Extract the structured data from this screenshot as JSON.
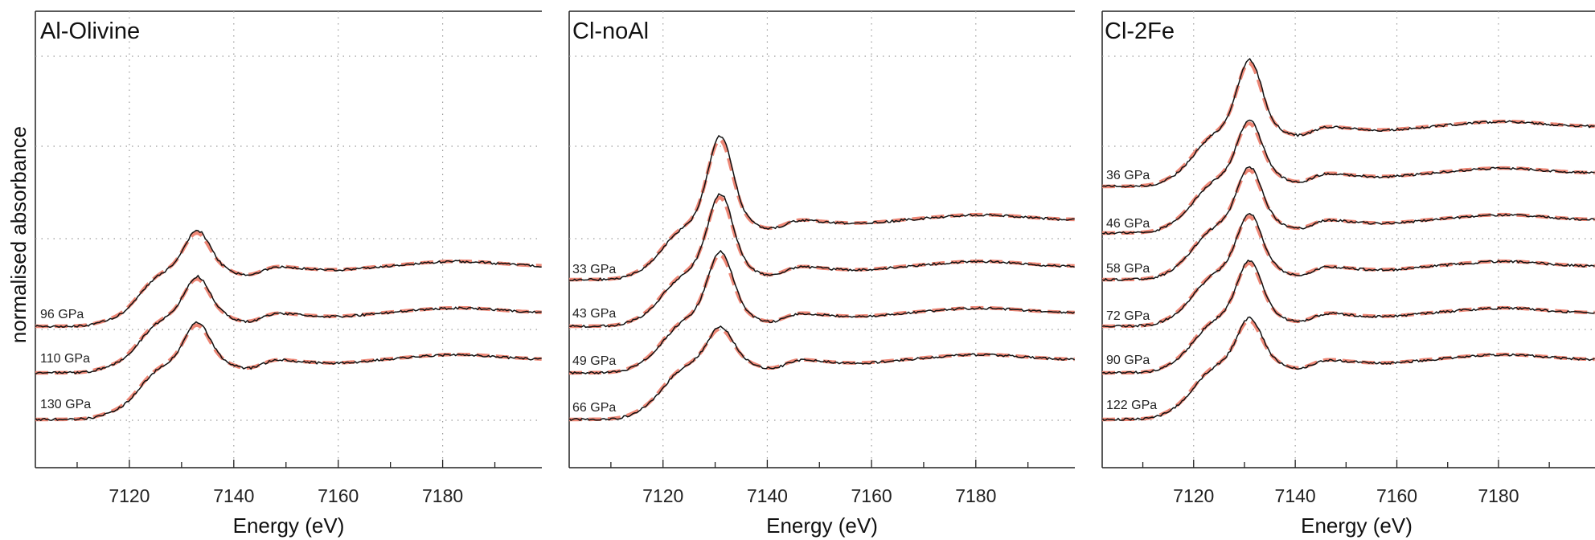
{
  "figure": {
    "ylabel": "normalised absorbance",
    "colors": {
      "measured": "#111111",
      "calculated": "#ee8877",
      "grid": "#9a9a9a"
    }
  },
  "chart_data": [
    {
      "type": "line",
      "title": "Al-Olivine",
      "xlabel": "Energy (eV)",
      "ylabel": "normalised absorbance",
      "xlim": [
        7102,
        7199
      ],
      "xticks": [
        7120,
        7140,
        7160,
        7180
      ],
      "grid": true,
      "series_styles": {
        "measured": "solid black",
        "calculated": "dashed salmon"
      },
      "peak_eV": 7133,
      "spectra": [
        {
          "label": "130 GPa",
          "offset": 2,
          "peak": 1.65
        },
        {
          "label": "110 GPa",
          "offset": 1,
          "peak": 1.66
        },
        {
          "label": "96 GPa",
          "offset": 0,
          "peak": 1.67
        }
      ]
    },
    {
      "type": "line",
      "title": "Cl-noAl",
      "xlabel": "Energy (eV)",
      "ylabel": "normalised absorbance",
      "xlim": [
        7102,
        7199
      ],
      "xticks": [
        7120,
        7140,
        7160,
        7180
      ],
      "grid": true,
      "series_styles": {
        "measured": "solid black",
        "calculated": "dashed salmon"
      },
      "peak_eV": 7131,
      "spectra": [
        {
          "label": "66 GPa",
          "offset": 3,
          "peak": 2.5
        },
        {
          "label": "49 GPa",
          "offset": 2,
          "peak": 2.3
        },
        {
          "label": "43 GPa",
          "offset": 1,
          "peak": 2.1
        },
        {
          "label": "33 GPa",
          "offset": 0,
          "peak": 1.6
        }
      ]
    },
    {
      "type": "line",
      "title": "Cl-2Fe",
      "xlabel": "Energy (eV)",
      "ylabel": "normalised absorbance",
      "xlim": [
        7102,
        7199
      ],
      "xticks": [
        7120,
        7140,
        7160,
        7180
      ],
      "grid": true,
      "series_styles": {
        "measured": "solid black",
        "calculated": "dashed salmon"
      },
      "peak_eV": 7131,
      "spectra": [
        {
          "label": "122 GPa",
          "offset": 5,
          "peak": 2.2
        },
        {
          "label": "90 GPa",
          "offset": 4,
          "peak": 1.95
        },
        {
          "label": "72 GPa",
          "offset": 3,
          "peak": 1.95
        },
        {
          "label": "58 GPa",
          "offset": 2,
          "peak": 1.95
        },
        {
          "label": "46 GPa",
          "offset": 1,
          "peak": 1.95
        },
        {
          "label": "36 GPa",
          "offset": 0,
          "peak": 1.75
        }
      ]
    }
  ]
}
